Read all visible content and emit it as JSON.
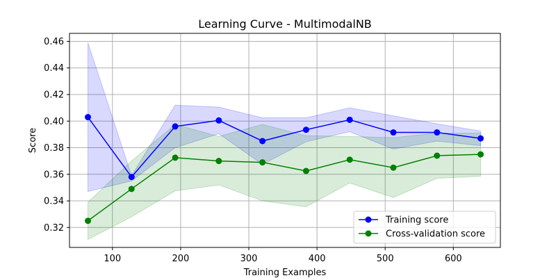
{
  "chart_data": {
    "type": "line",
    "title": "Learning Curve - MultimodalNB",
    "xlabel": "Training Examples",
    "ylabel": "Score",
    "xlim": [
      37,
      669
    ],
    "ylim": [
      0.305,
      0.466
    ],
    "xticks": [
      100,
      200,
      300,
      400,
      500,
      600
    ],
    "xtick_labels": [
      "100",
      "200",
      "300",
      "400",
      "500",
      "600"
    ],
    "yticks": [
      0.32,
      0.34,
      0.36,
      0.38,
      0.4,
      0.42,
      0.44,
      0.46
    ],
    "ytick_labels": [
      "0.32",
      "0.34",
      "0.36",
      "0.38",
      "0.40",
      "0.42",
      "0.44",
      "0.46"
    ],
    "grid": true,
    "legend_position": "lower-right",
    "x": [
      64,
      128,
      192,
      256,
      320,
      384,
      448,
      512,
      576,
      640
    ],
    "series": [
      {
        "name": "Training score",
        "color": "#0000ff",
        "values": [
          0.403,
          0.358,
          0.396,
          0.4005,
          0.385,
          0.3935,
          0.401,
          0.3915,
          0.3915,
          0.387
        ],
        "band_upper": [
          0.459,
          0.359,
          0.412,
          0.4105,
          0.4025,
          0.4025,
          0.41,
          0.404,
          0.398,
          0.3925
        ],
        "band_lower": [
          0.347,
          0.355,
          0.38,
          0.3905,
          0.3675,
          0.3845,
          0.392,
          0.379,
          0.385,
          0.3815
        ],
        "fill_color": "#0000ff"
      },
      {
        "name": "Cross-validation score",
        "color": "#008000",
        "values": [
          0.325,
          0.349,
          0.3725,
          0.37,
          0.369,
          0.3625,
          0.371,
          0.365,
          0.374,
          0.375
        ],
        "band_upper": [
          0.339,
          0.37,
          0.3975,
          0.3885,
          0.3975,
          0.389,
          0.3885,
          0.3875,
          0.391,
          0.391
        ],
        "band_lower": [
          0.311,
          0.328,
          0.3475,
          0.352,
          0.34,
          0.3355,
          0.3535,
          0.3425,
          0.357,
          0.3585
        ],
        "fill_color": "#008000"
      }
    ]
  }
}
